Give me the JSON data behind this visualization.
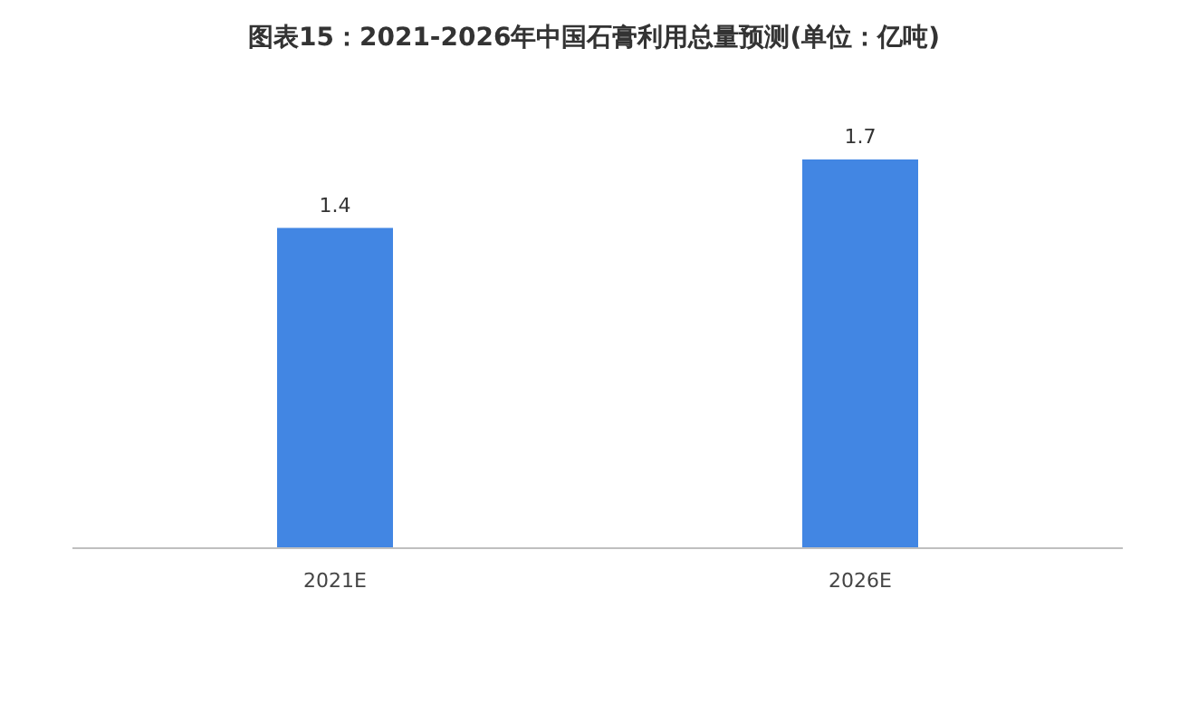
{
  "chart_data": {
    "type": "bar",
    "title": "图表15：2021-2026年中国石膏利用总量预测(单位：亿吨)",
    "categories": [
      "2021E",
      "2026E"
    ],
    "values": [
      1.4,
      1.7
    ],
    "color": "#4286e3",
    "data_labels": true
  }
}
